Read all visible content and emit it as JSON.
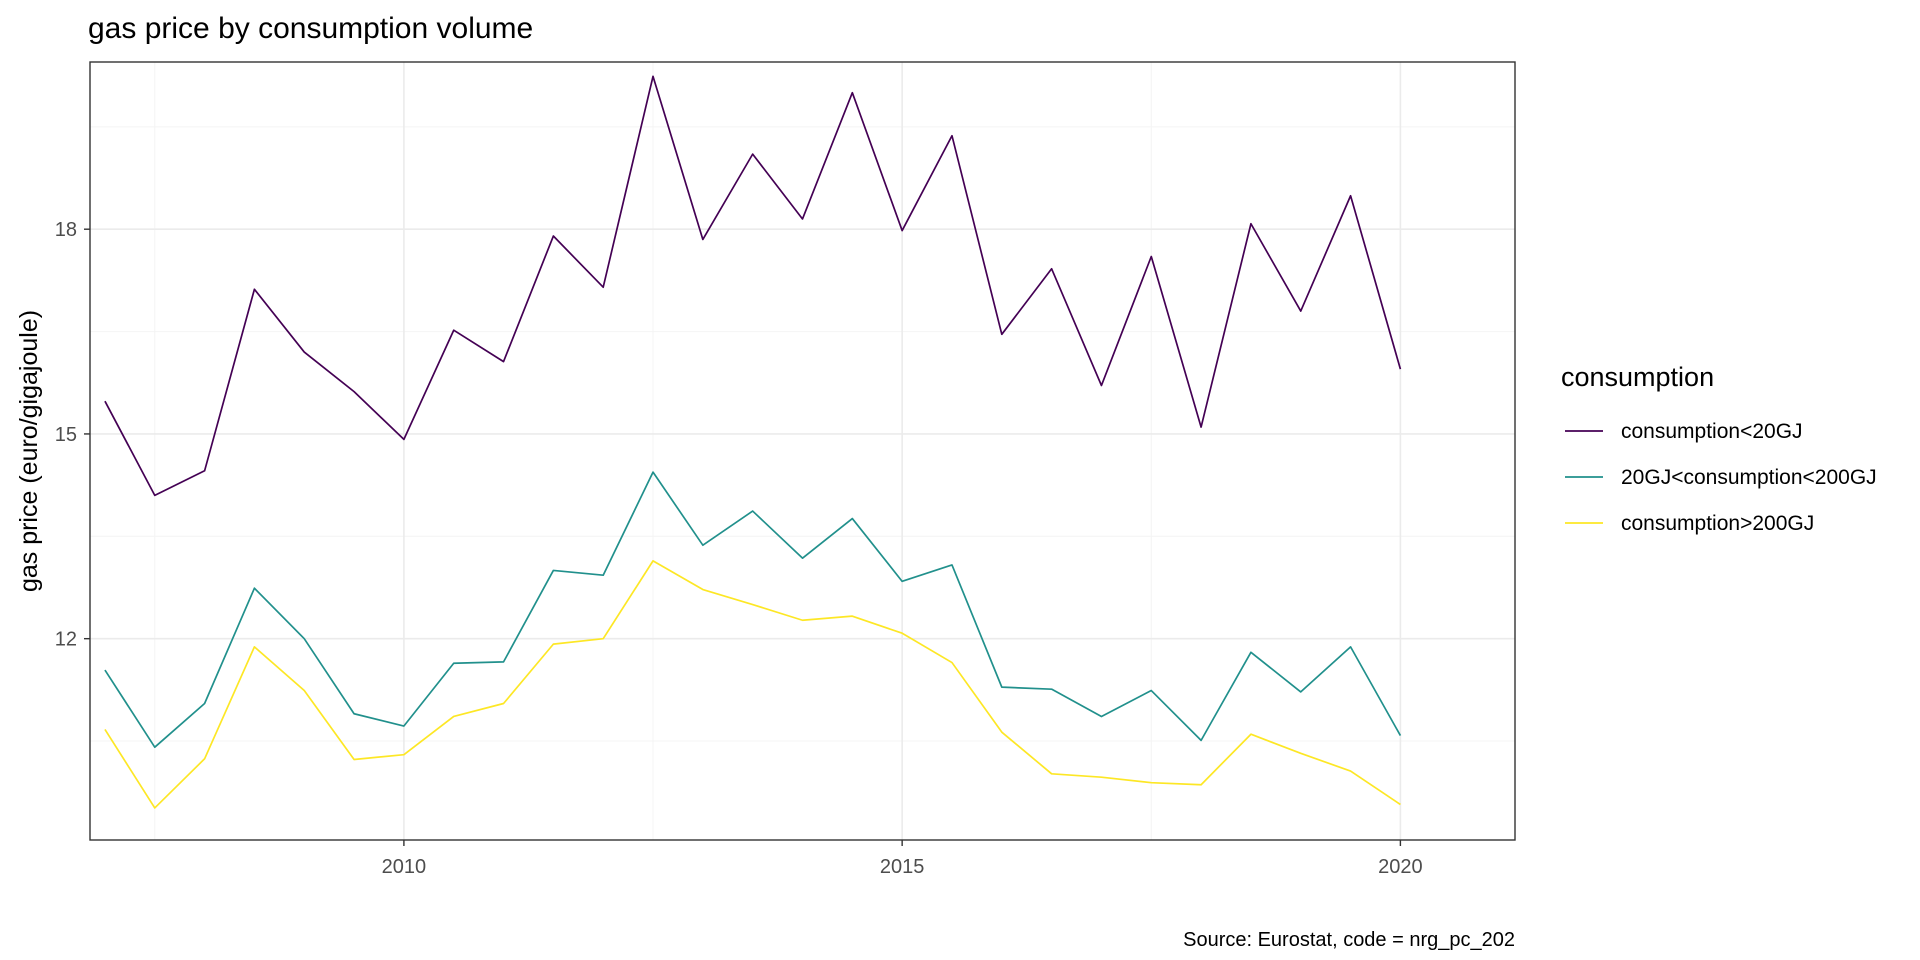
{
  "chart_data": {
    "type": "line",
    "title": "gas price by consumption volume",
    "xlabel": "",
    "ylabel": "gas price (euro/gigajoule)",
    "caption": "Source: Eurostat, code = nrg_pc_202",
    "xlim": [
      2006.85,
      2021.15
    ],
    "ylim": [
      9.05,
      20.45
    ],
    "x_ticks": [
      2010,
      2015,
      2020
    ],
    "y_ticks": [
      12,
      15,
      18
    ],
    "grid": true,
    "legend": {
      "title": "consumption",
      "position": "right"
    },
    "x": [
      2007.0,
      2007.5,
      2008.0,
      2008.5,
      2009.0,
      2009.5,
      2010.0,
      2010.5,
      2011.0,
      2011.5,
      2012.0,
      2012.5,
      2013.0,
      2013.5,
      2014.0,
      2014.5,
      2015.0,
      2015.5,
      2016.0,
      2016.5,
      2017.0,
      2017.5,
      2018.0,
      2018.5,
      2019.0,
      2019.5,
      2020.0
    ],
    "series": [
      {
        "name": "consumption<20GJ",
        "color": "#440154",
        "values": [
          15.48,
          14.1,
          14.46,
          17.12,
          16.2,
          15.62,
          14.92,
          16.52,
          16.06,
          17.9,
          17.15,
          20.24,
          17.85,
          19.1,
          18.15,
          20.0,
          17.98,
          19.37,
          16.46,
          17.42,
          15.71,
          17.6,
          15.1,
          18.08,
          16.8,
          18.49,
          15.95
        ]
      },
      {
        "name": "20GJ<consumption<200GJ",
        "color": "#21908C",
        "values": [
          11.54,
          10.41,
          11.05,
          12.74,
          12.0,
          10.9,
          10.72,
          11.64,
          11.66,
          13.0,
          12.93,
          14.44,
          13.37,
          13.87,
          13.18,
          13.76,
          12.84,
          13.08,
          11.29,
          11.26,
          10.86,
          11.24,
          10.51,
          11.8,
          11.22,
          11.88,
          10.58
        ]
      },
      {
        "name": "consumption>200GJ",
        "color": "#FDE725",
        "values": [
          10.67,
          9.52,
          10.24,
          11.88,
          11.24,
          10.23,
          10.3,
          10.86,
          11.05,
          11.92,
          12.0,
          13.14,
          12.72,
          12.5,
          12.27,
          12.33,
          12.08,
          11.65,
          10.63,
          10.02,
          9.97,
          9.89,
          9.86,
          10.6,
          10.32,
          10.06,
          9.57
        ]
      }
    ]
  }
}
